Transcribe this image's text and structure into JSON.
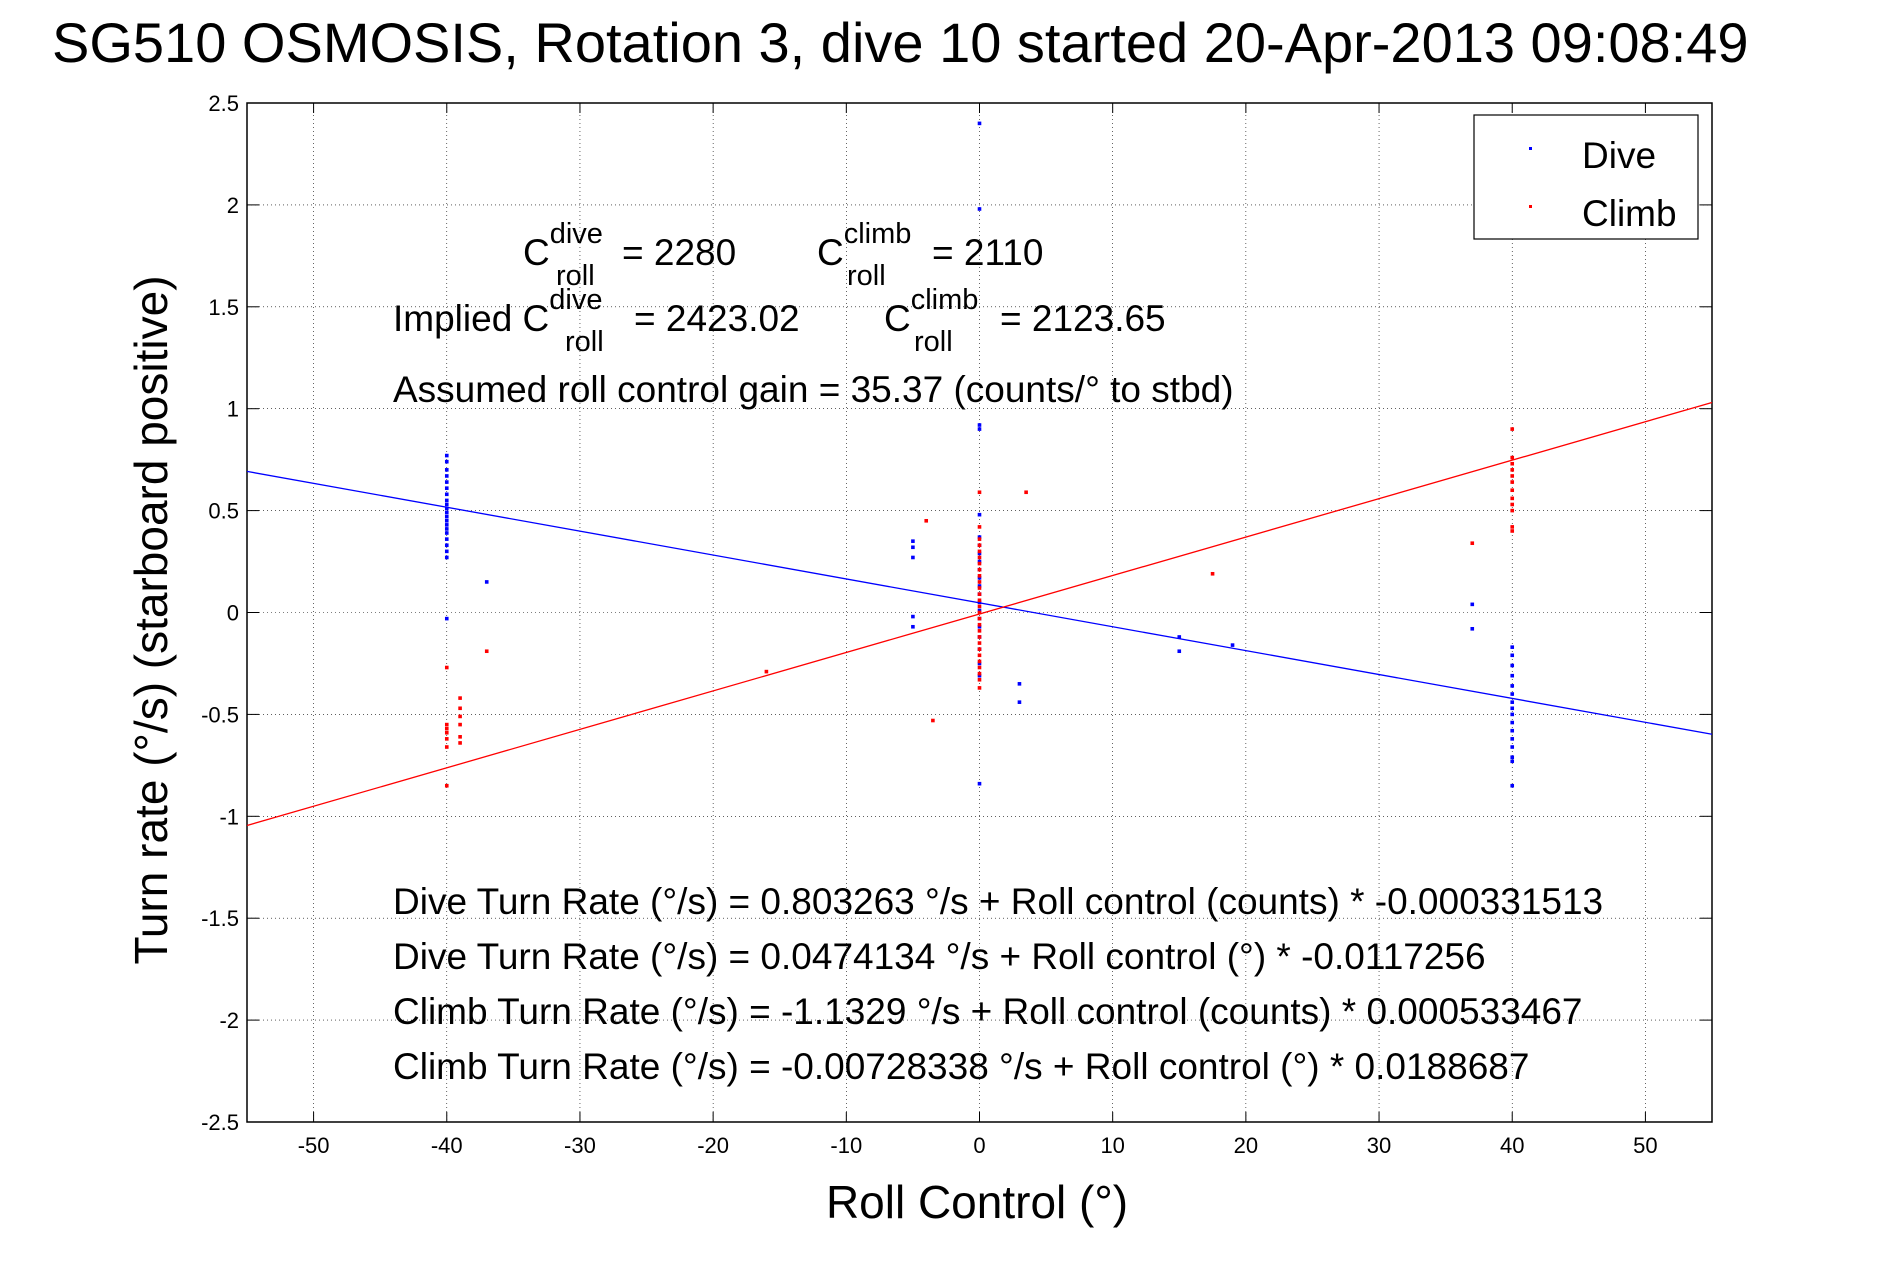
{
  "chart_data": {
    "type": "scatter",
    "title": "SG510 OSMOSIS, Rotation 3, dive 10 started 20-Apr-2013 09:08:49",
    "xlabel": "Roll Control (°)",
    "ylabel": "Turn rate (°/s)  (starboard positive)",
    "xlim": [
      -55,
      55
    ],
    "ylim": [
      -2.5,
      2.5
    ],
    "xticks": [
      -50,
      -40,
      -30,
      -20,
      -10,
      0,
      10,
      20,
      30,
      40,
      50
    ],
    "yticks": [
      -2.5,
      -2,
      -1.5,
      -1,
      -0.5,
      0,
      0.5,
      1,
      1.5,
      2,
      2.5
    ],
    "grid": true,
    "legend": {
      "placement": "top-right",
      "entries": [
        "Dive",
        "Climb"
      ]
    },
    "colors": {
      "dive": "#0000ff",
      "climb": "#ff0000"
    },
    "series": [
      {
        "name": "Dive",
        "points": [
          [
            -40,
            0.77
          ],
          [
            -40,
            0.74
          ],
          [
            -40,
            0.7
          ],
          [
            -40,
            0.67
          ],
          [
            -40,
            0.64
          ],
          [
            -40,
            0.61
          ],
          [
            -40,
            0.58
          ],
          [
            -40,
            0.55
          ],
          [
            -40,
            0.53
          ],
          [
            -40,
            0.51
          ],
          [
            -40,
            0.49
          ],
          [
            -40,
            0.47
          ],
          [
            -40,
            0.45
          ],
          [
            -40,
            0.43
          ],
          [
            -40,
            0.41
          ],
          [
            -40,
            0.39
          ],
          [
            -40,
            0.36
          ],
          [
            -40,
            0.33
          ],
          [
            -40,
            0.3
          ],
          [
            -40,
            0.27
          ],
          [
            -40,
            -0.03
          ],
          [
            -37,
            0.15
          ],
          [
            -5,
            0.35
          ],
          [
            -5,
            0.32
          ],
          [
            -5,
            0.27
          ],
          [
            -5,
            -0.02
          ],
          [
            -5,
            -0.07
          ],
          [
            0,
            2.4
          ],
          [
            0,
            1.98
          ],
          [
            0,
            0.92
          ],
          [
            0,
            0.9
          ],
          [
            0,
            0.48
          ],
          [
            0,
            0.37
          ],
          [
            0,
            0.33
          ],
          [
            0,
            0.29
          ],
          [
            0,
            0.25
          ],
          [
            0,
            0.21
          ],
          [
            0,
            0.17
          ],
          [
            0,
            0.13
          ],
          [
            0,
            0.09
          ],
          [
            0,
            0.05
          ],
          [
            0,
            0.01
          ],
          [
            0,
            -0.03
          ],
          [
            0,
            -0.07
          ],
          [
            0,
            -0.12
          ],
          [
            0,
            -0.18
          ],
          [
            0,
            -0.25
          ],
          [
            0,
            -0.31
          ],
          [
            0,
            -0.84
          ],
          [
            3,
            -0.35
          ],
          [
            3,
            -0.44
          ],
          [
            15,
            -0.12
          ],
          [
            15,
            -0.19
          ],
          [
            19,
            -0.16
          ],
          [
            37,
            0.04
          ],
          [
            37,
            -0.08
          ],
          [
            40,
            -0.17
          ],
          [
            40,
            -0.21
          ],
          [
            40,
            -0.26
          ],
          [
            40,
            -0.31
          ],
          [
            40,
            -0.36
          ],
          [
            40,
            -0.4
          ],
          [
            40,
            -0.44
          ],
          [
            40,
            -0.47
          ],
          [
            40,
            -0.5
          ],
          [
            40,
            -0.54
          ],
          [
            40,
            -0.58
          ],
          [
            40,
            -0.62
          ],
          [
            40,
            -0.66
          ],
          [
            40,
            -0.71
          ],
          [
            40,
            -0.73
          ],
          [
            40,
            -0.85
          ]
        ]
      },
      {
        "name": "Climb",
        "points": [
          [
            -40,
            -0.27
          ],
          [
            -40,
            -0.55
          ],
          [
            -40,
            -0.57
          ],
          [
            -40,
            -0.59
          ],
          [
            -40,
            -0.62
          ],
          [
            -40,
            -0.66
          ],
          [
            -40,
            -0.85
          ],
          [
            -39,
            -0.42
          ],
          [
            -39,
            -0.47
          ],
          [
            -39,
            -0.51
          ],
          [
            -39,
            -0.55
          ],
          [
            -39,
            -0.61
          ],
          [
            -39,
            -0.64
          ],
          [
            -37,
            -0.19
          ],
          [
            -16,
            -0.29
          ],
          [
            -4,
            0.45
          ],
          [
            -3.5,
            -0.53
          ],
          [
            0,
            0.59
          ],
          [
            0,
            0.42
          ],
          [
            0,
            0.36
          ],
          [
            0,
            0.33
          ],
          [
            0,
            0.3
          ],
          [
            0,
            0.27
          ],
          [
            0,
            0.24
          ],
          [
            0,
            0.21
          ],
          [
            0,
            0.18
          ],
          [
            0,
            0.15
          ],
          [
            0,
            0.12
          ],
          [
            0,
            0.09
          ],
          [
            0,
            0.06
          ],
          [
            0,
            0.03
          ],
          [
            0,
            0.0
          ],
          [
            0,
            -0.03
          ],
          [
            0,
            -0.06
          ],
          [
            0,
            -0.09
          ],
          [
            0,
            -0.12
          ],
          [
            0,
            -0.15
          ],
          [
            0,
            -0.18
          ],
          [
            0,
            -0.21
          ],
          [
            0,
            -0.24
          ],
          [
            0,
            -0.27
          ],
          [
            0,
            -0.3
          ],
          [
            0,
            -0.33
          ],
          [
            0,
            -0.37
          ],
          [
            3.5,
            0.59
          ],
          [
            17.5,
            0.19
          ],
          [
            37,
            0.34
          ],
          [
            40,
            0.9
          ],
          [
            40,
            0.76
          ],
          [
            40,
            0.73
          ],
          [
            40,
            0.7
          ],
          [
            40,
            0.67
          ],
          [
            40,
            0.64
          ],
          [
            40,
            0.6
          ],
          [
            40,
            0.56
          ],
          [
            40,
            0.53
          ],
          [
            40,
            0.5
          ],
          [
            40,
            0.42
          ],
          [
            40,
            0.4
          ]
        ]
      }
    ],
    "fits": [
      {
        "series": "Dive",
        "intercept": 0.0474134,
        "slope": -0.0117256
      },
      {
        "series": "Climb",
        "intercept": -0.00728338,
        "slope": 0.0188687
      }
    ]
  },
  "annotations": {
    "line1": {
      "c_base": "C",
      "dive_sup": "dive",
      "dive_sub": "roll",
      "dive_val": "= 2280",
      "climb_sup": "climb",
      "climb_sub": "roll",
      "climb_val": "= 2110"
    },
    "line2": {
      "prefix": "Implied C",
      "dive_sup": "dive",
      "dive_sub": "roll",
      "dive_val": "= 2423.02",
      "c_base": "C",
      "climb_sup": "climb",
      "climb_sub": "roll",
      "climb_val": "= 2123.65"
    },
    "gain": "Assumed roll control gain = 35.37 (counts/° to stbd)",
    "eq1": "Dive Turn Rate (°/s) = 0.803263 °/s + Roll control (counts) * -0.000331513",
    "eq2": "Dive Turn Rate (°/s) = 0.0474134 °/s + Roll control (°) * -0.0117256",
    "eq3": "Climb Turn Rate (°/s) = -1.1329 °/s + Roll control (counts) * 0.000533467",
    "eq4": "Climb Turn Rate (°/s) = -0.00728338 °/s + Roll control (°) * 0.0188687"
  }
}
